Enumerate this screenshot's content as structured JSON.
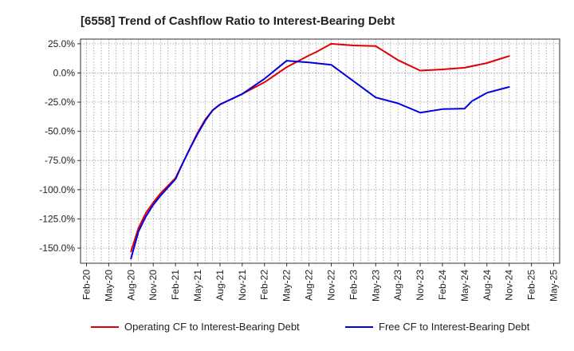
{
  "chart_data": {
    "type": "line",
    "title": "[6558]  Trend of Cashflow Ratio to Interest-Bearing Debt",
    "xlabel": "",
    "ylabel": "",
    "x_ticks": [
      "Feb-20",
      "May-20",
      "Aug-20",
      "Nov-20",
      "Feb-21",
      "May-21",
      "Aug-21",
      "Nov-21",
      "Feb-22",
      "May-22",
      "Aug-22",
      "Nov-22",
      "Feb-23",
      "May-23",
      "Aug-23",
      "Nov-23",
      "Feb-24",
      "May-24",
      "Aug-24",
      "Nov-24",
      "Feb-25",
      "May-25"
    ],
    "y_ticks": [
      25,
      0,
      -25,
      -50,
      -75,
      -100,
      -125,
      -150
    ],
    "y_tick_labels": [
      "25.0%",
      "0.0%",
      "-25.0%",
      "-50.0%",
      "-75.0%",
      "-100.0%",
      "-125.0%",
      "-150.0%"
    ],
    "ylim": [
      -163,
      29
    ],
    "grid": true,
    "legend_position": "bottom",
    "series": [
      {
        "name": "Operating CF to Interest-Bearing Debt",
        "color": "#e00000",
        "x": [
          "Aug-20",
          "Sep-20",
          "Oct-20",
          "Nov-20",
          "Dec-20",
          "Feb-21",
          "Mar-21",
          "Apr-21",
          "May-21",
          "Jun-21",
          "Jul-21",
          "Aug-21",
          "Nov-21",
          "Feb-22",
          "May-22",
          "Aug-22",
          "Sep-22",
          "Nov-22",
          "Feb-23",
          "May-23",
          "Aug-23",
          "Nov-23",
          "Feb-24",
          "May-24",
          "Aug-24",
          "Nov-24"
        ],
        "values": [
          -153,
          -133,
          -120,
          -111,
          -103,
          -90,
          -77,
          -64,
          -51,
          -40,
          -32,
          -27,
          -18,
          -8,
          5,
          15,
          18,
          25,
          23.5,
          23,
          11,
          2,
          3,
          4.5,
          8.5,
          14.5
        ]
      },
      {
        "name": "Free CF to Interest-Bearing Debt",
        "color": "#0000e0",
        "x": [
          "Aug-20",
          "Sep-20",
          "Oct-20",
          "Nov-20",
          "Dec-20",
          "Feb-21",
          "Mar-21",
          "Apr-21",
          "May-21",
          "Jun-21",
          "Jul-21",
          "Aug-21",
          "Nov-21",
          "Feb-22",
          "May-22",
          "Aug-22",
          "Nov-22",
          "Feb-23",
          "May-23",
          "Aug-23",
          "Nov-23",
          "Feb-24",
          "May-24",
          "Jun-24",
          "Aug-24",
          "Nov-24"
        ],
        "values": [
          -159,
          -136,
          -123,
          -113,
          -105,
          -91,
          -77,
          -64,
          -52,
          -41,
          -32,
          -27,
          -18,
          -5,
          10.5,
          9,
          7,
          -7,
          -21,
          -26,
          -34,
          -31,
          -30.5,
          -24,
          -17,
          -12
        ]
      }
    ]
  }
}
